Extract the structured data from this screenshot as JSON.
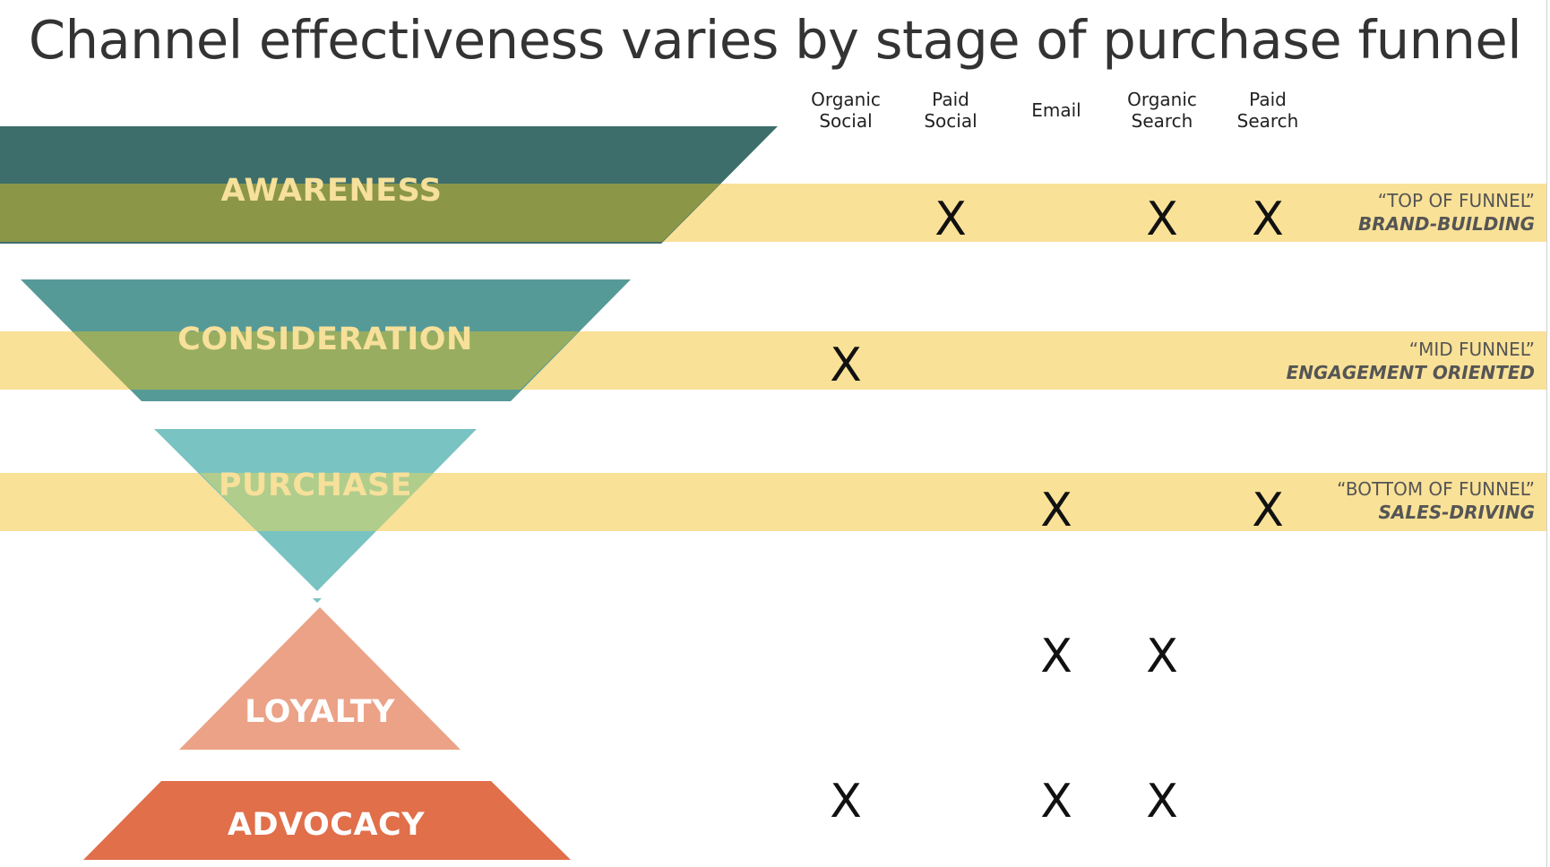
{
  "title": "Channel effectiveness varies by stage of purchase funnel",
  "columns": [
    {
      "line1": "Organic",
      "line2": "Social"
    },
    {
      "line1": "Paid",
      "line2": "Social"
    },
    {
      "line1": "Email",
      "line2": ""
    },
    {
      "line1": "Organic",
      "line2": "Search"
    },
    {
      "line1": "Paid",
      "line2": "Search"
    }
  ],
  "stages": [
    {
      "label": "AWARENESS",
      "color": "#3d6e6b",
      "marks": [
        "",
        "X",
        "",
        "X",
        "X"
      ],
      "note_quote": "“TOP OF FUNNEL”",
      "note_desc": "BRAND-BUILDING"
    },
    {
      "label": "CONSIDERATION",
      "color": "#569a98",
      "marks": [
        "X",
        "",
        "",
        "",
        ""
      ],
      "note_quote": "“MID FUNNEL”",
      "note_desc": "ENGAGEMENT ORIENTED"
    },
    {
      "label": "PURCHASE",
      "color": "#79c3c2",
      "marks": [
        "",
        "",
        "X",
        "",
        "X"
      ],
      "note_quote": "“BOTTOM OF FUNNEL”",
      "note_desc": "SALES-DRIVING"
    },
    {
      "label": "LOYALTY",
      "color": "#eba287",
      "marks": [
        "",
        "",
        "X",
        "X",
        ""
      ],
      "note_quote": "",
      "note_desc": ""
    },
    {
      "label": "ADVOCACY",
      "color": "#e06f4a",
      "marks": [
        "X",
        "",
        "X",
        "X",
        ""
      ],
      "note_quote": "",
      "note_desc": ""
    }
  ],
  "colors": {
    "band": "#f9e197",
    "overlap": "#8b9647",
    "title": "#333333"
  }
}
